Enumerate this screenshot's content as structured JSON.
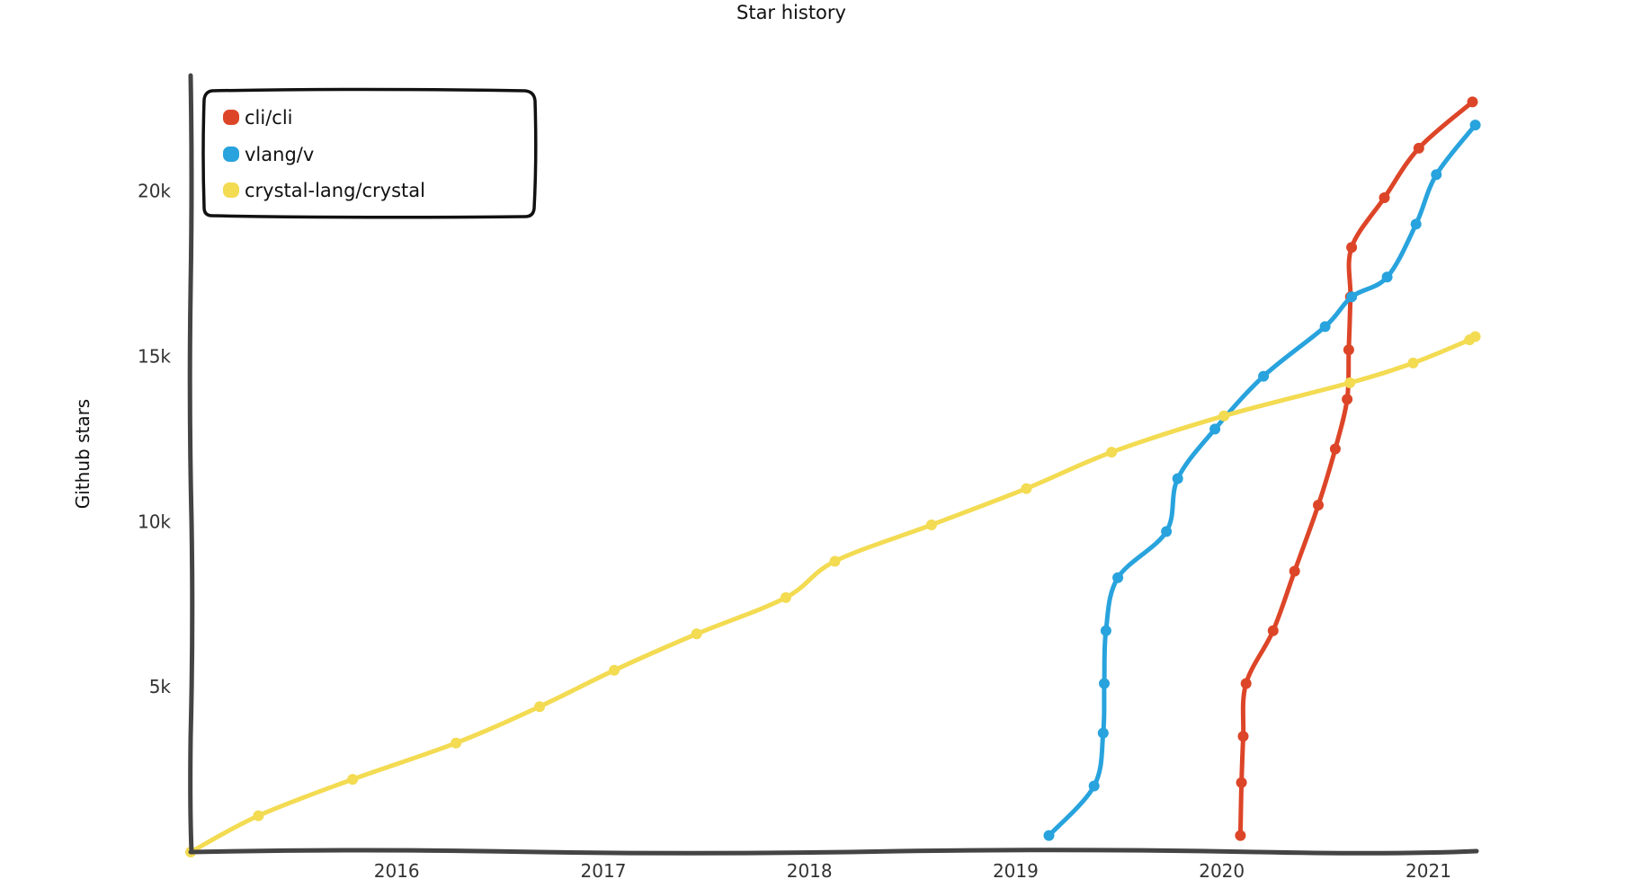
{
  "chart_data": {
    "type": "line",
    "title": "Star history",
    "xlabel": "",
    "ylabel": "Github stars",
    "x_ticks": [
      "2016",
      "2017",
      "2018",
      "2019",
      "2020",
      "2021"
    ],
    "y_ticks": [
      "5k",
      "10k",
      "15k",
      "20k"
    ],
    "xlim": [
      "2015-01-01",
      "2021-04-01"
    ],
    "ylim": [
      0,
      23500
    ],
    "grid": false,
    "legend_position": "top-left",
    "series": [
      {
        "name": "cli/cli",
        "color": "#dd4528",
        "points": [
          [
            "2020-02-03",
            500
          ],
          [
            "2020-02-05",
            2100
          ],
          [
            "2020-02-08",
            3500
          ],
          [
            "2020-02-13",
            5100
          ],
          [
            "2020-04-01",
            6700
          ],
          [
            "2020-05-09",
            8500
          ],
          [
            "2020-06-20",
            10500
          ],
          [
            "2020-07-20",
            12200
          ],
          [
            "2020-08-10",
            13700
          ],
          [
            "2020-08-13",
            15200
          ],
          [
            "2020-08-16",
            16800
          ],
          [
            "2020-08-18",
            18300
          ],
          [
            "2020-10-15",
            19800
          ],
          [
            "2020-12-15",
            21300
          ],
          [
            "2021-03-20",
            22700
          ]
        ]
      },
      {
        "name": "vlang/v",
        "color": "#28a3dd",
        "points": [
          [
            "2019-03-01",
            500
          ],
          [
            "2019-05-20",
            2000
          ],
          [
            "2019-06-05",
            3600
          ],
          [
            "2019-06-07",
            5100
          ],
          [
            "2019-06-10",
            6700
          ],
          [
            "2019-07-01",
            8300
          ],
          [
            "2019-09-25",
            9700
          ],
          [
            "2019-10-15",
            11300
          ],
          [
            "2019-12-20",
            12800
          ],
          [
            "2020-03-15",
            14400
          ],
          [
            "2020-07-02",
            15900
          ],
          [
            "2020-08-18",
            16800
          ],
          [
            "2020-10-20",
            17400
          ],
          [
            "2020-12-10",
            19000
          ],
          [
            "2021-01-15",
            20500
          ],
          [
            "2021-03-25",
            22000
          ]
        ]
      },
      {
        "name": "crystal-lang/crystal",
        "color": "#f3db52",
        "points": [
          [
            "2015-01-01",
            0
          ],
          [
            "2015-05-01",
            1100
          ],
          [
            "2015-10-15",
            2200
          ],
          [
            "2016-04-15",
            3300
          ],
          [
            "2016-09-10",
            4400
          ],
          [
            "2017-01-20",
            5500
          ],
          [
            "2017-06-15",
            6600
          ],
          [
            "2017-11-20",
            7700
          ],
          [
            "2018-02-15",
            8800
          ],
          [
            "2018-08-05",
            9900
          ],
          [
            "2019-01-20",
            11000
          ],
          [
            "2019-06-20",
            12100
          ],
          [
            "2020-01-05",
            13200
          ],
          [
            "2020-08-15",
            14200
          ],
          [
            "2020-12-05",
            14800
          ],
          [
            "2021-03-15",
            15500
          ],
          [
            "2021-03-25",
            15600
          ]
        ]
      }
    ]
  }
}
